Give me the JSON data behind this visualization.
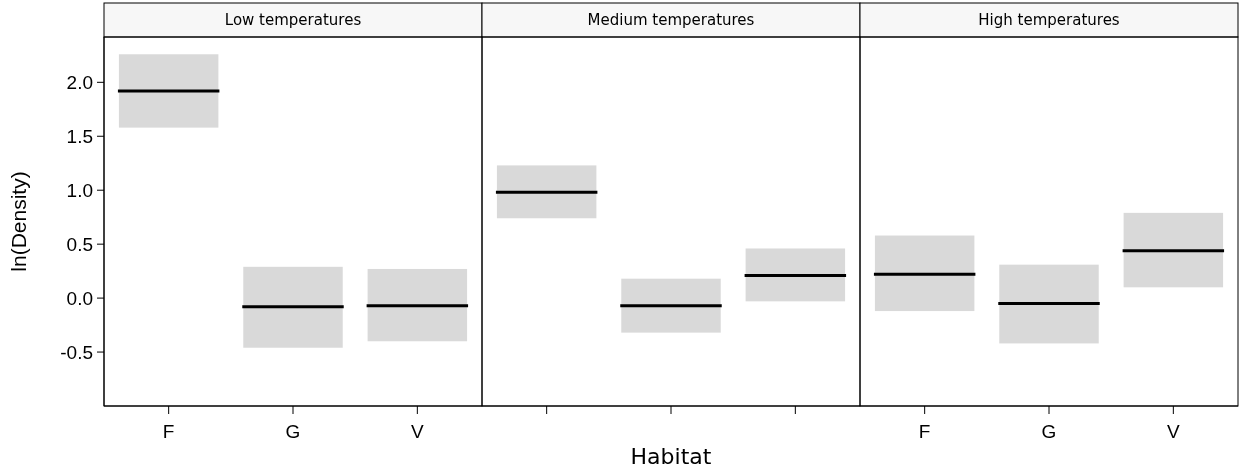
{
  "chart_data": {
    "type": "box",
    "xlabel": "Habitat",
    "ylabel": "ln(Density)",
    "categories": [
      "F",
      "G",
      "V",
      null,
      null,
      null,
      "F",
      "G",
      "V"
    ],
    "ylim": [
      -1.0,
      2.42
    ],
    "yticks": [
      {
        "value": -0.5,
        "label": "-0.5"
      },
      {
        "value": 0,
        "label": "0.0"
      },
      {
        "value": 0.5,
        "label": "0.5"
      },
      {
        "value": 1,
        "label": "1.0"
      },
      {
        "value": 1.5,
        "label": "1.5"
      },
      {
        "value": 2,
        "label": "2.0"
      }
    ],
    "annotations": [
      "Low temperatures",
      "Medium temperatures",
      "High temperatures"
    ],
    "series": [
      {
        "color": "#d9d9d9",
        "boxes": [
          {
            "low": 1.58,
            "q1": 1.58,
            "median": 1.92,
            "q3": 2.26,
            "high": 2.26
          },
          {
            "low": -0.46,
            "q1": -0.46,
            "median": -0.08,
            "q3": 0.29,
            "high": 0.29
          },
          {
            "low": -0.4,
            "q1": -0.4,
            "median": -0.07,
            "q3": 0.27,
            "high": 0.27
          },
          {
            "low": 0.74,
            "q1": 0.74,
            "median": 0.98,
            "q3": 1.23,
            "high": 1.23
          },
          {
            "low": -0.32,
            "q1": -0.32,
            "median": -0.07,
            "q3": 0.18,
            "high": 0.18
          },
          {
            "low": -0.03,
            "q1": -0.03,
            "median": 0.21,
            "q3": 0.46,
            "high": 0.46
          },
          {
            "low": -0.12,
            "q1": -0.12,
            "median": 0.22,
            "q3": 0.58,
            "high": 0.58
          },
          {
            "low": -0.42,
            "q1": -0.42,
            "median": -0.05,
            "q3": 0.31,
            "high": 0.31
          },
          {
            "low": 0.1,
            "q1": 0.1,
            "median": 0.44,
            "q3": 0.79,
            "high": 0.79
          }
        ]
      }
    ]
  }
}
